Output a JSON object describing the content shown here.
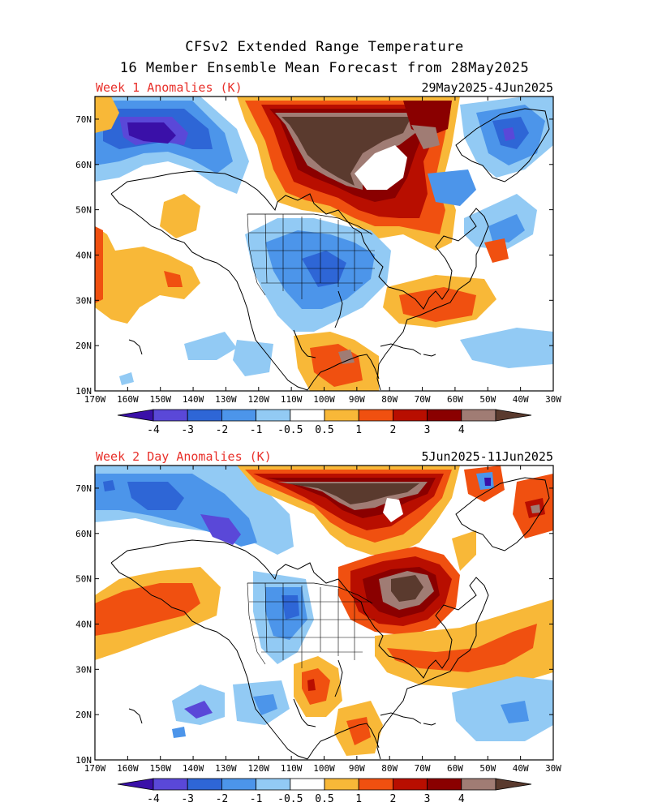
{
  "header": {
    "title_line1": "CFSv2 Extended Range Temperature",
    "title_line2": "16 Member Ensemble Mean Forecast from 28May2025"
  },
  "panels": [
    {
      "id": "week1",
      "label": "Week 1 Anomalies (K)",
      "dates": "29May2025-4Jun2025"
    },
    {
      "id": "week2",
      "label": "Week 2 Day Anomalies (K)",
      "dates": "5Jun2025-11Jun2025"
    }
  ],
  "axes": {
    "lon_labels": [
      "170W",
      "160W",
      "150W",
      "140W",
      "130W",
      "120W",
      "110W",
      "100W",
      "90W",
      "80W",
      "70W",
      "60W",
      "50W",
      "40W",
      "30W"
    ],
    "lat_labels": [
      "70N",
      "60N",
      "50N",
      "40N",
      "30N",
      "20N",
      "10N"
    ]
  },
  "colorbar": {
    "labels": [
      "-4",
      "-3",
      "-2",
      "-1",
      "-0.5",
      "0.5",
      "1",
      "2",
      "3",
      "4"
    ],
    "colors": [
      "#3a10a8",
      "#5a48d8",
      "#2e66d6",
      "#4c95ea",
      "#92caf4",
      "#ffffff",
      "#f8b838",
      "#f05010",
      "#b80e00",
      "#8a0000",
      "#a07c74",
      "#5a3a2e"
    ]
  },
  "label_color": "#e8302a"
}
